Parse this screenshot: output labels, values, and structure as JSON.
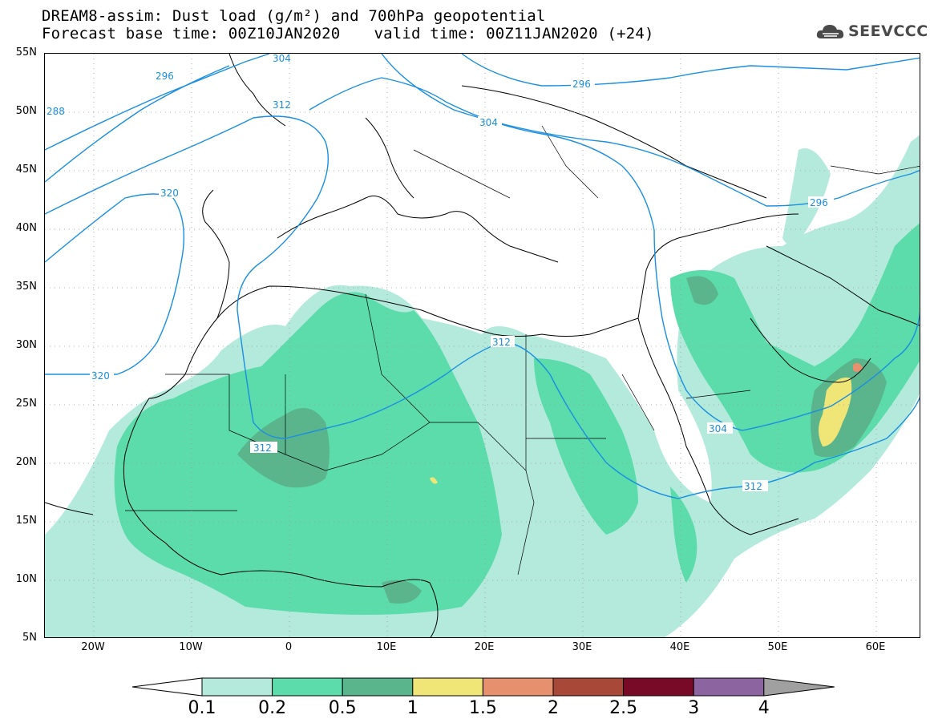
{
  "header": {
    "title_line1": "DREAM8-assim: Dust load (g/m²) and 700hPa geopotential",
    "forecast_base": "Forecast base time: 00Z10JAN2020",
    "valid_time": "valid time: 00Z11JAN2020 (+24)"
  },
  "logo": {
    "text": "SEEVCCC",
    "icon": "cloud-icon"
  },
  "map": {
    "lat_labels": [
      "55N",
      "50N",
      "45N",
      "40N",
      "35N",
      "30N",
      "25N",
      "20N",
      "15N",
      "10N",
      "5N"
    ],
    "lon_labels": [
      "20W",
      "10W",
      "0",
      "10E",
      "20E",
      "30E",
      "40E",
      "50E",
      "60E"
    ],
    "contour_color": "#1a8fe0",
    "contour_labels": [
      "304",
      "296",
      "288",
      "312",
      "320",
      "312",
      "312",
      "304",
      "296",
      "304",
      "296",
      "312",
      "320"
    ]
  },
  "colorbar": {
    "labels": [
      "0.1",
      "0.2",
      "0.5",
      "1",
      "1.5",
      "2",
      "2.5",
      "3",
      "4"
    ],
    "colors": [
      "#b4eadc",
      "#5bdcaa",
      "#5ab48c",
      "#f0e678",
      "#e6906e",
      "#a84838",
      "#780a28",
      "#8c64a0"
    ],
    "low_arrow_color": "#ffffff",
    "high_arrow_color": "#a0a0a0"
  },
  "dust_colors": {
    "light": "#b4eadc",
    "medium": "#5bdcaa",
    "dark": "#5ab48c",
    "yellow": "#f0e678",
    "orange": "#e6906e",
    "red": "#a84838"
  }
}
